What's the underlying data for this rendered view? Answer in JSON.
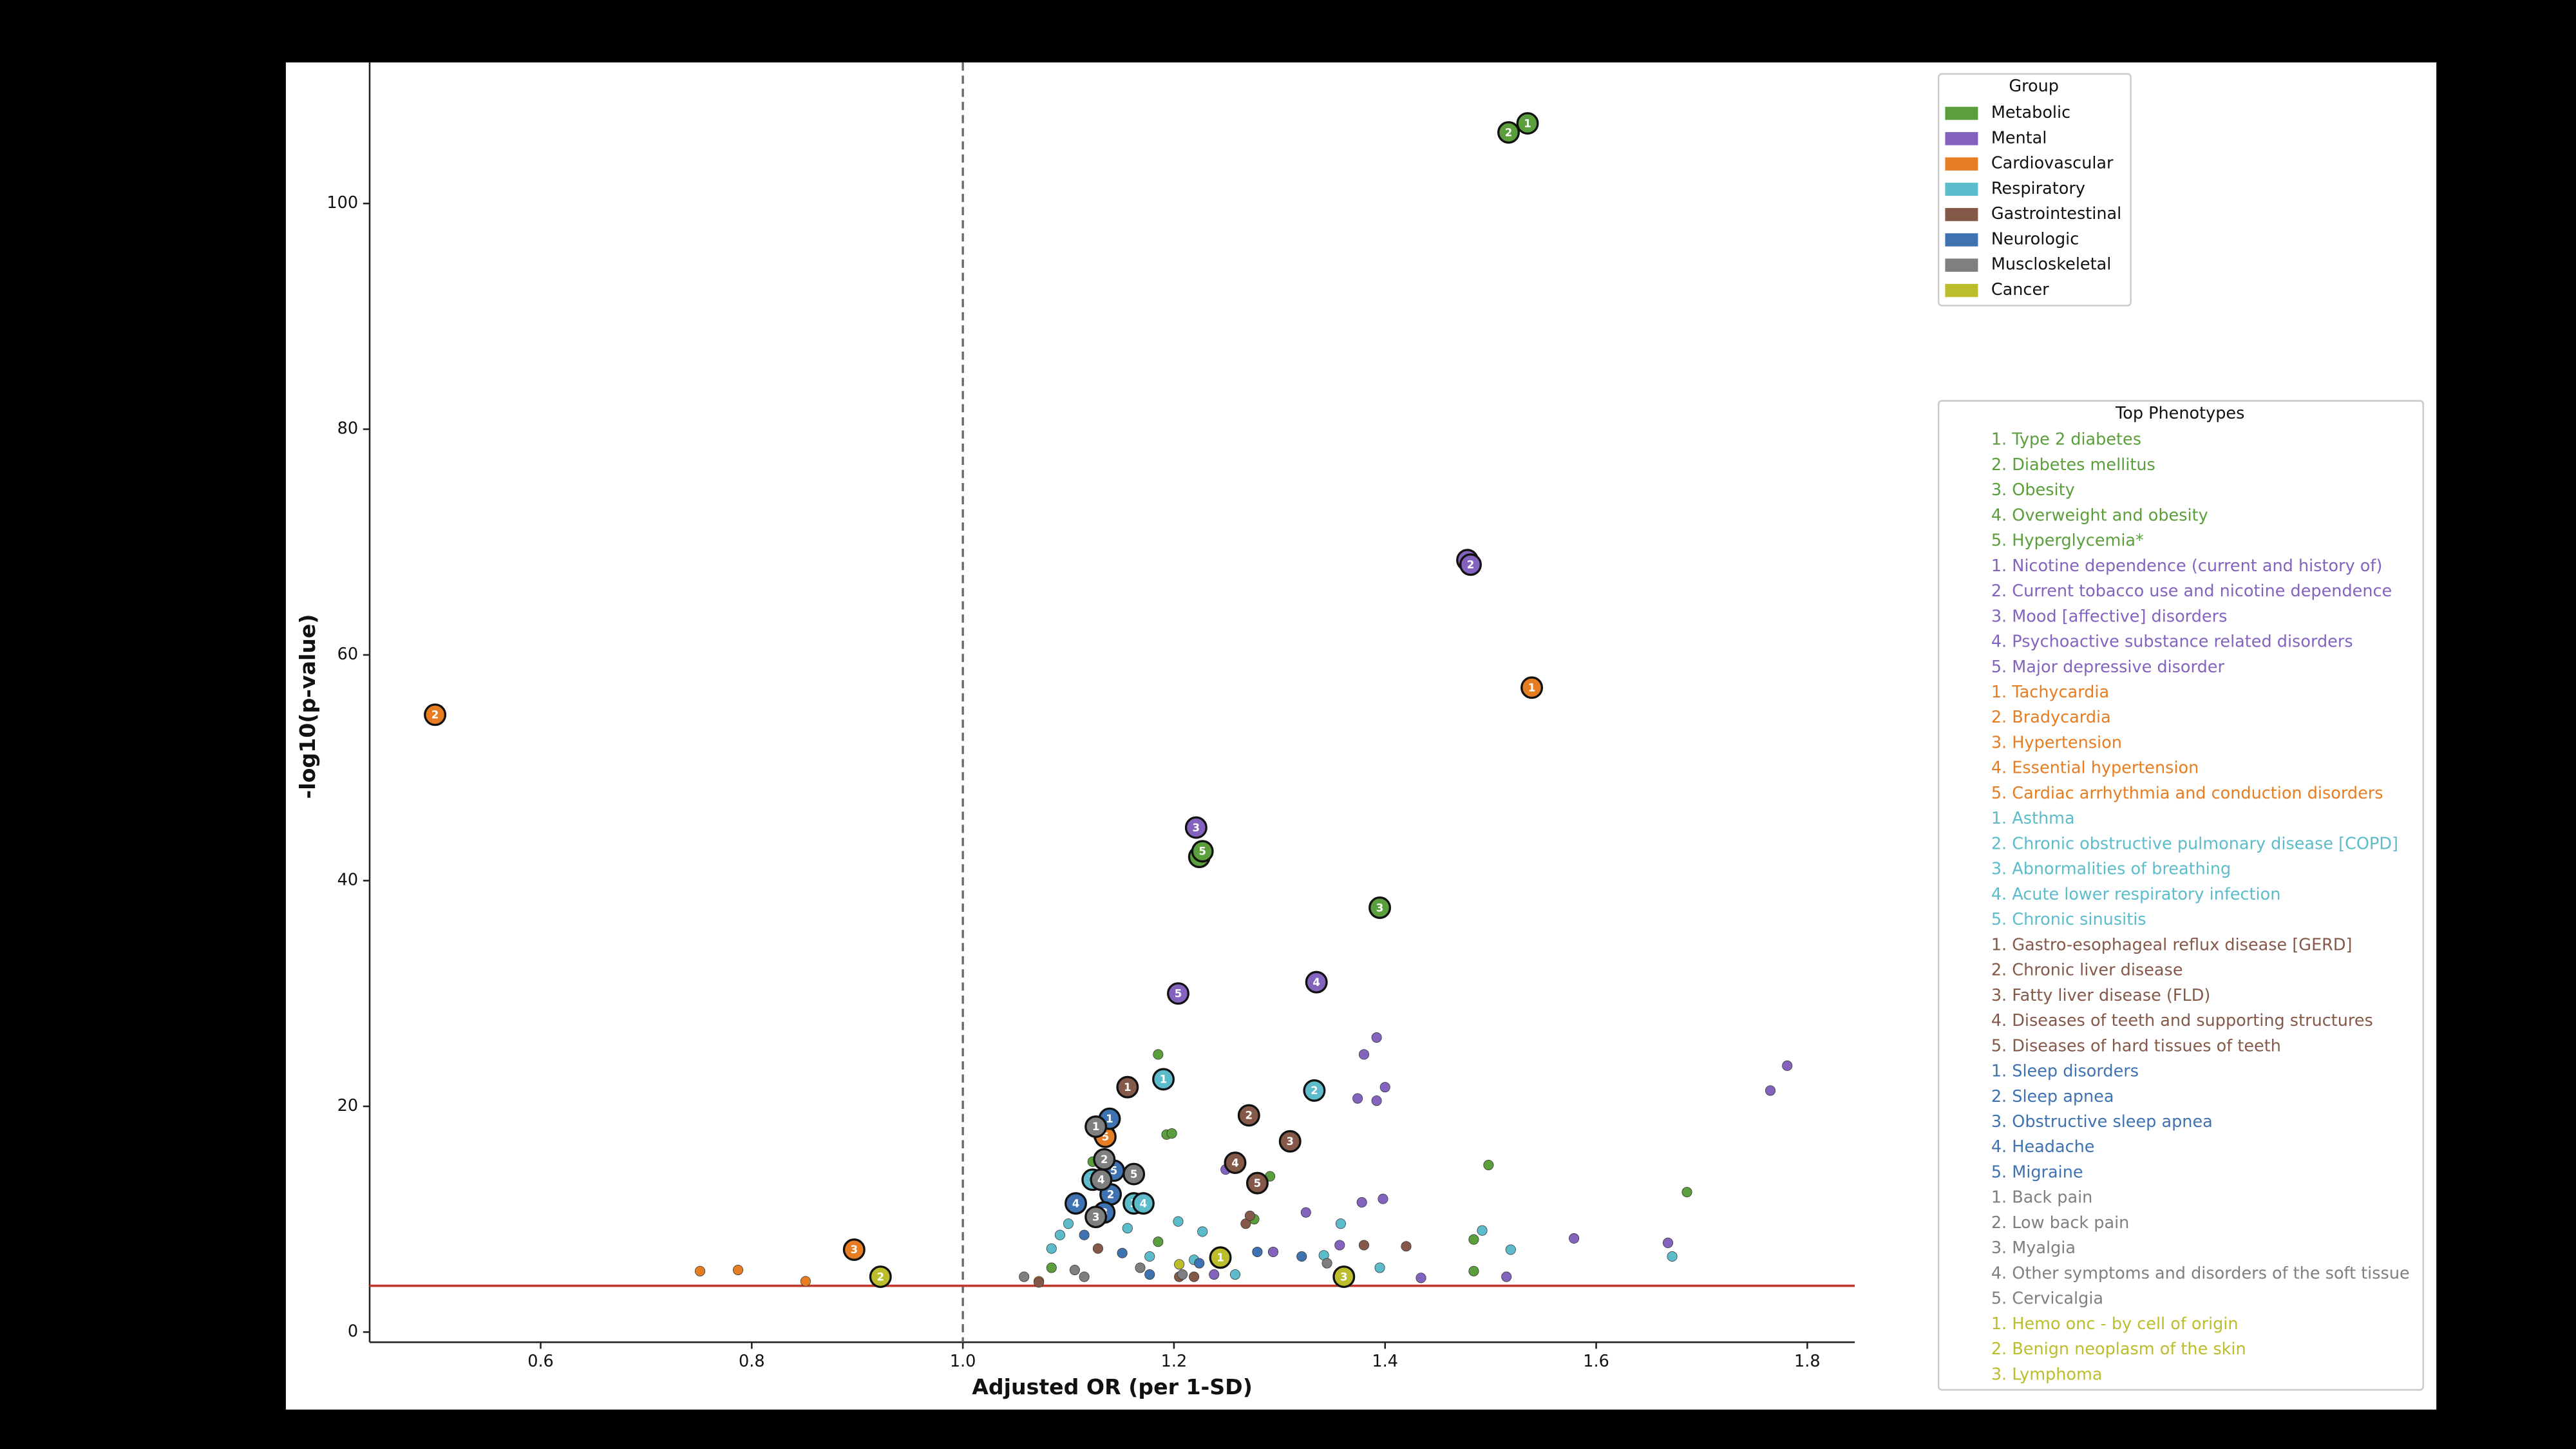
{
  "chart_data": {
    "type": "scatter",
    "xlabel": "Adjusted OR (per 1-SD)",
    "ylabel": "-log10(p-value)",
    "xlim": [
      0.438,
      1.845
    ],
    "ylim": [
      -0.9,
      112.5
    ],
    "xticks": [
      0.6,
      0.8,
      {
        "value": 1,
        "label": "1.0"
      },
      1.2,
      1.4,
      1.6,
      1.8
    ],
    "yticks": [
      0,
      20,
      40,
      60,
      80,
      100
    ],
    "vline_x": 1,
    "hline_y": 4.1,
    "legend_title": "Group",
    "top_title": "Top Phenotypes",
    "series": [
      {
        "name": "Metabolic",
        "color": "#5b9e3c",
        "x": [
          1.185,
          1.193,
          1.198,
          1.498,
          1.686,
          1.484,
          1.484,
          1.291,
          1.123,
          1.084,
          1.276,
          1.185
        ],
        "values": [
          24.6,
          17.5,
          17.6,
          14.8,
          12.4,
          8.2,
          5.4,
          13.8,
          15.1,
          5.7,
          10.0,
          8.0
        ],
        "top": [
          {
            "label": "1. Type 2 diabetes",
            "rank": 1,
            "x": 1.535,
            "y": 107.1
          },
          {
            "label": "2. Diabetes mellitus",
            "rank": 2,
            "x": 1.517,
            "y": 106.3
          },
          {
            "label": "3. Obesity",
            "rank": 3,
            "x": 1.395,
            "y": 37.6
          },
          {
            "label": "4. Overweight and obesity",
            "rank": 4,
            "x": 1.224,
            "y": 42.1
          },
          {
            "label": "5. Hyperglycemia*",
            "rank": 5,
            "x": 1.227,
            "y": 42.6
          }
        ]
      },
      {
        "name": "Mental",
        "color": "#8463be",
        "x": [
          1.781,
          1.765,
          1.392,
          1.38,
          1.4,
          1.374,
          1.392,
          1.579,
          1.668,
          1.515,
          1.398,
          1.378,
          1.325,
          1.249,
          1.434,
          1.357,
          1.238,
          1.294
        ],
        "values": [
          23.6,
          21.4,
          26.1,
          24.6,
          21.7,
          20.7,
          20.5,
          8.3,
          7.9,
          4.9,
          11.8,
          11.5,
          10.6,
          14.4,
          4.8,
          7.7,
          5.1,
          7.1
        ],
        "top": [
          {
            "label": "1. Nicotine dependence (current and history of)",
            "rank": 1,
            "x": 1.478,
            "y": 68.4
          },
          {
            "label": "2. Current tobacco use and nicotine dependence",
            "rank": 2,
            "x": 1.481,
            "y": 68.0
          },
          {
            "label": "3. Mood [affective] disorders",
            "rank": 3,
            "x": 1.221,
            "y": 44.7
          },
          {
            "label": "4. Psychoactive substance related disorders",
            "rank": 4,
            "x": 1.335,
            "y": 31.0
          },
          {
            "label": "5. Major depressive disorder",
            "rank": 5,
            "x": 1.204,
            "y": 30.0
          }
        ]
      },
      {
        "name": "Cardiovascular",
        "color": "#e67d22",
        "x": [
          0.751,
          0.787,
          0.851,
          1.072
        ],
        "values": [
          5.4,
          5.5,
          4.5,
          4.5
        ],
        "top": [
          {
            "label": "1. Tachycardia",
            "rank": 1,
            "x": 1.539,
            "y": 57.1
          },
          {
            "label": "2. Bradycardia",
            "rank": 2,
            "x": 0.5,
            "y": 54.7
          },
          {
            "label": "3. Hypertension",
            "rank": 3,
            "x": 0.897,
            "y": 7.3
          },
          {
            "label": "4. Essential hypertension",
            "rank": 4,
            "x": 1.134,
            "y": 17.5
          },
          {
            "label": "5. Cardiac arrhythmia and conduction disorders",
            "rank": 5,
            "x": 1.135,
            "y": 17.3
          }
        ]
      },
      {
        "name": "Respiratory",
        "color": "#5cbccb",
        "x": [
          1.204,
          1.227,
          1.492,
          1.519,
          1.672,
          1.358,
          1.395,
          1.219,
          1.258,
          1.084,
          1.1,
          1.156,
          1.177,
          1.342,
          1.092
        ],
        "values": [
          9.8,
          8.9,
          9.0,
          7.3,
          6.7,
          9.6,
          5.7,
          6.4,
          5.1,
          7.4,
          9.6,
          9.2,
          6.7,
          6.8,
          8.6
        ],
        "top": [
          {
            "label": "1. Asthma",
            "rank": 1,
            "x": 1.19,
            "y": 22.4
          },
          {
            "label": "2. Chronic obstructive pulmonary disease [COPD]",
            "rank": 2,
            "x": 1.333,
            "y": 21.4
          },
          {
            "label": "3. Abnormalities of breathing",
            "rank": 3,
            "x": 1.162,
            "y": 11.4
          },
          {
            "label": "4. Acute lower respiratory infection",
            "rank": 4,
            "x": 1.171,
            "y": 11.4
          },
          {
            "label": "5. Chronic sinusitis",
            "rank": 5,
            "x": 1.123,
            "y": 13.5
          }
        ]
      },
      {
        "name": "Gastrointestinal",
        "color": "#85594a",
        "x": [
          1.38,
          1.42,
          1.268,
          1.219,
          1.205,
          1.128,
          1.072,
          1.272
        ],
        "values": [
          7.7,
          7.6,
          9.6,
          4.9,
          4.9,
          7.4,
          4.4,
          10.3
        ],
        "top": [
          {
            "label": "1. Gastro-esophageal reflux disease [GERD]",
            "rank": 1,
            "x": 1.156,
            "y": 21.7
          },
          {
            "label": "2. Chronic liver disease",
            "rank": 2,
            "x": 1.271,
            "y": 19.2
          },
          {
            "label": "3. Fatty liver disease (FLD)",
            "rank": 3,
            "x": 1.31,
            "y": 16.9
          },
          {
            "label": "4. Diseases of teeth and supporting structures",
            "rank": 4,
            "x": 1.258,
            "y": 15.0
          },
          {
            "label": "5. Diseases of hard tissues of teeth",
            "rank": 5,
            "x": 1.279,
            "y": 13.2
          }
        ]
      },
      {
        "name": "Neurologic",
        "color": "#3f72b0",
        "x": [
          1.279,
          1.321,
          1.177,
          1.115,
          1.151,
          1.224
        ],
        "values": [
          7.1,
          6.7,
          5.1,
          8.6,
          7.0,
          6.1
        ],
        "top": [
          {
            "label": "1. Sleep disorders",
            "rank": 1,
            "x": 1.139,
            "y": 18.9
          },
          {
            "label": "2. Sleep apnea",
            "rank": 2,
            "x": 1.14,
            "y": 12.2
          },
          {
            "label": "3. Obstructive sleep apnea",
            "rank": 3,
            "x": 1.134,
            "y": 10.6
          },
          {
            "label": "4. Headache",
            "rank": 4,
            "x": 1.107,
            "y": 11.4
          },
          {
            "label": "5. Migraine",
            "rank": 5,
            "x": 1.143,
            "y": 14.3
          }
        ]
      },
      {
        "name": "Muscloskeletal",
        "color": "#7f7f7f",
        "x": [
          1.058,
          1.208,
          1.115,
          1.106,
          1.345,
          1.168
        ],
        "values": [
          4.9,
          5.1,
          4.9,
          5.5,
          6.1,
          5.7
        ],
        "top": [
          {
            "label": "1. Back pain",
            "rank": 1,
            "x": 1.126,
            "y": 18.2
          },
          {
            "label": "2. Low back pain",
            "rank": 2,
            "x": 1.134,
            "y": 15.3
          },
          {
            "label": "3. Myalgia",
            "rank": 3,
            "x": 1.126,
            "y": 10.2
          },
          {
            "label": "4. Other symptoms and disorders of the soft tissue",
            "rank": 4,
            "x": 1.131,
            "y": 13.5
          },
          {
            "label": "5. Cervicalgia",
            "rank": 5,
            "x": 1.162,
            "y": 14.0
          }
        ]
      },
      {
        "name": "Cancer",
        "color": "#bcbd2c",
        "x": [
          1.205
        ],
        "values": [
          6.0
        ],
        "top": [
          {
            "label": "1. Hemo onc - by cell of origin",
            "rank": 1,
            "x": 1.244,
            "y": 6.6
          },
          {
            "label": "2. Benign neoplasm of the skin",
            "rank": 2,
            "x": 0.922,
            "y": 4.9
          },
          {
            "label": "3. Lymphoma",
            "rank": 3,
            "x": 1.361,
            "y": 4.9
          }
        ]
      }
    ]
  }
}
